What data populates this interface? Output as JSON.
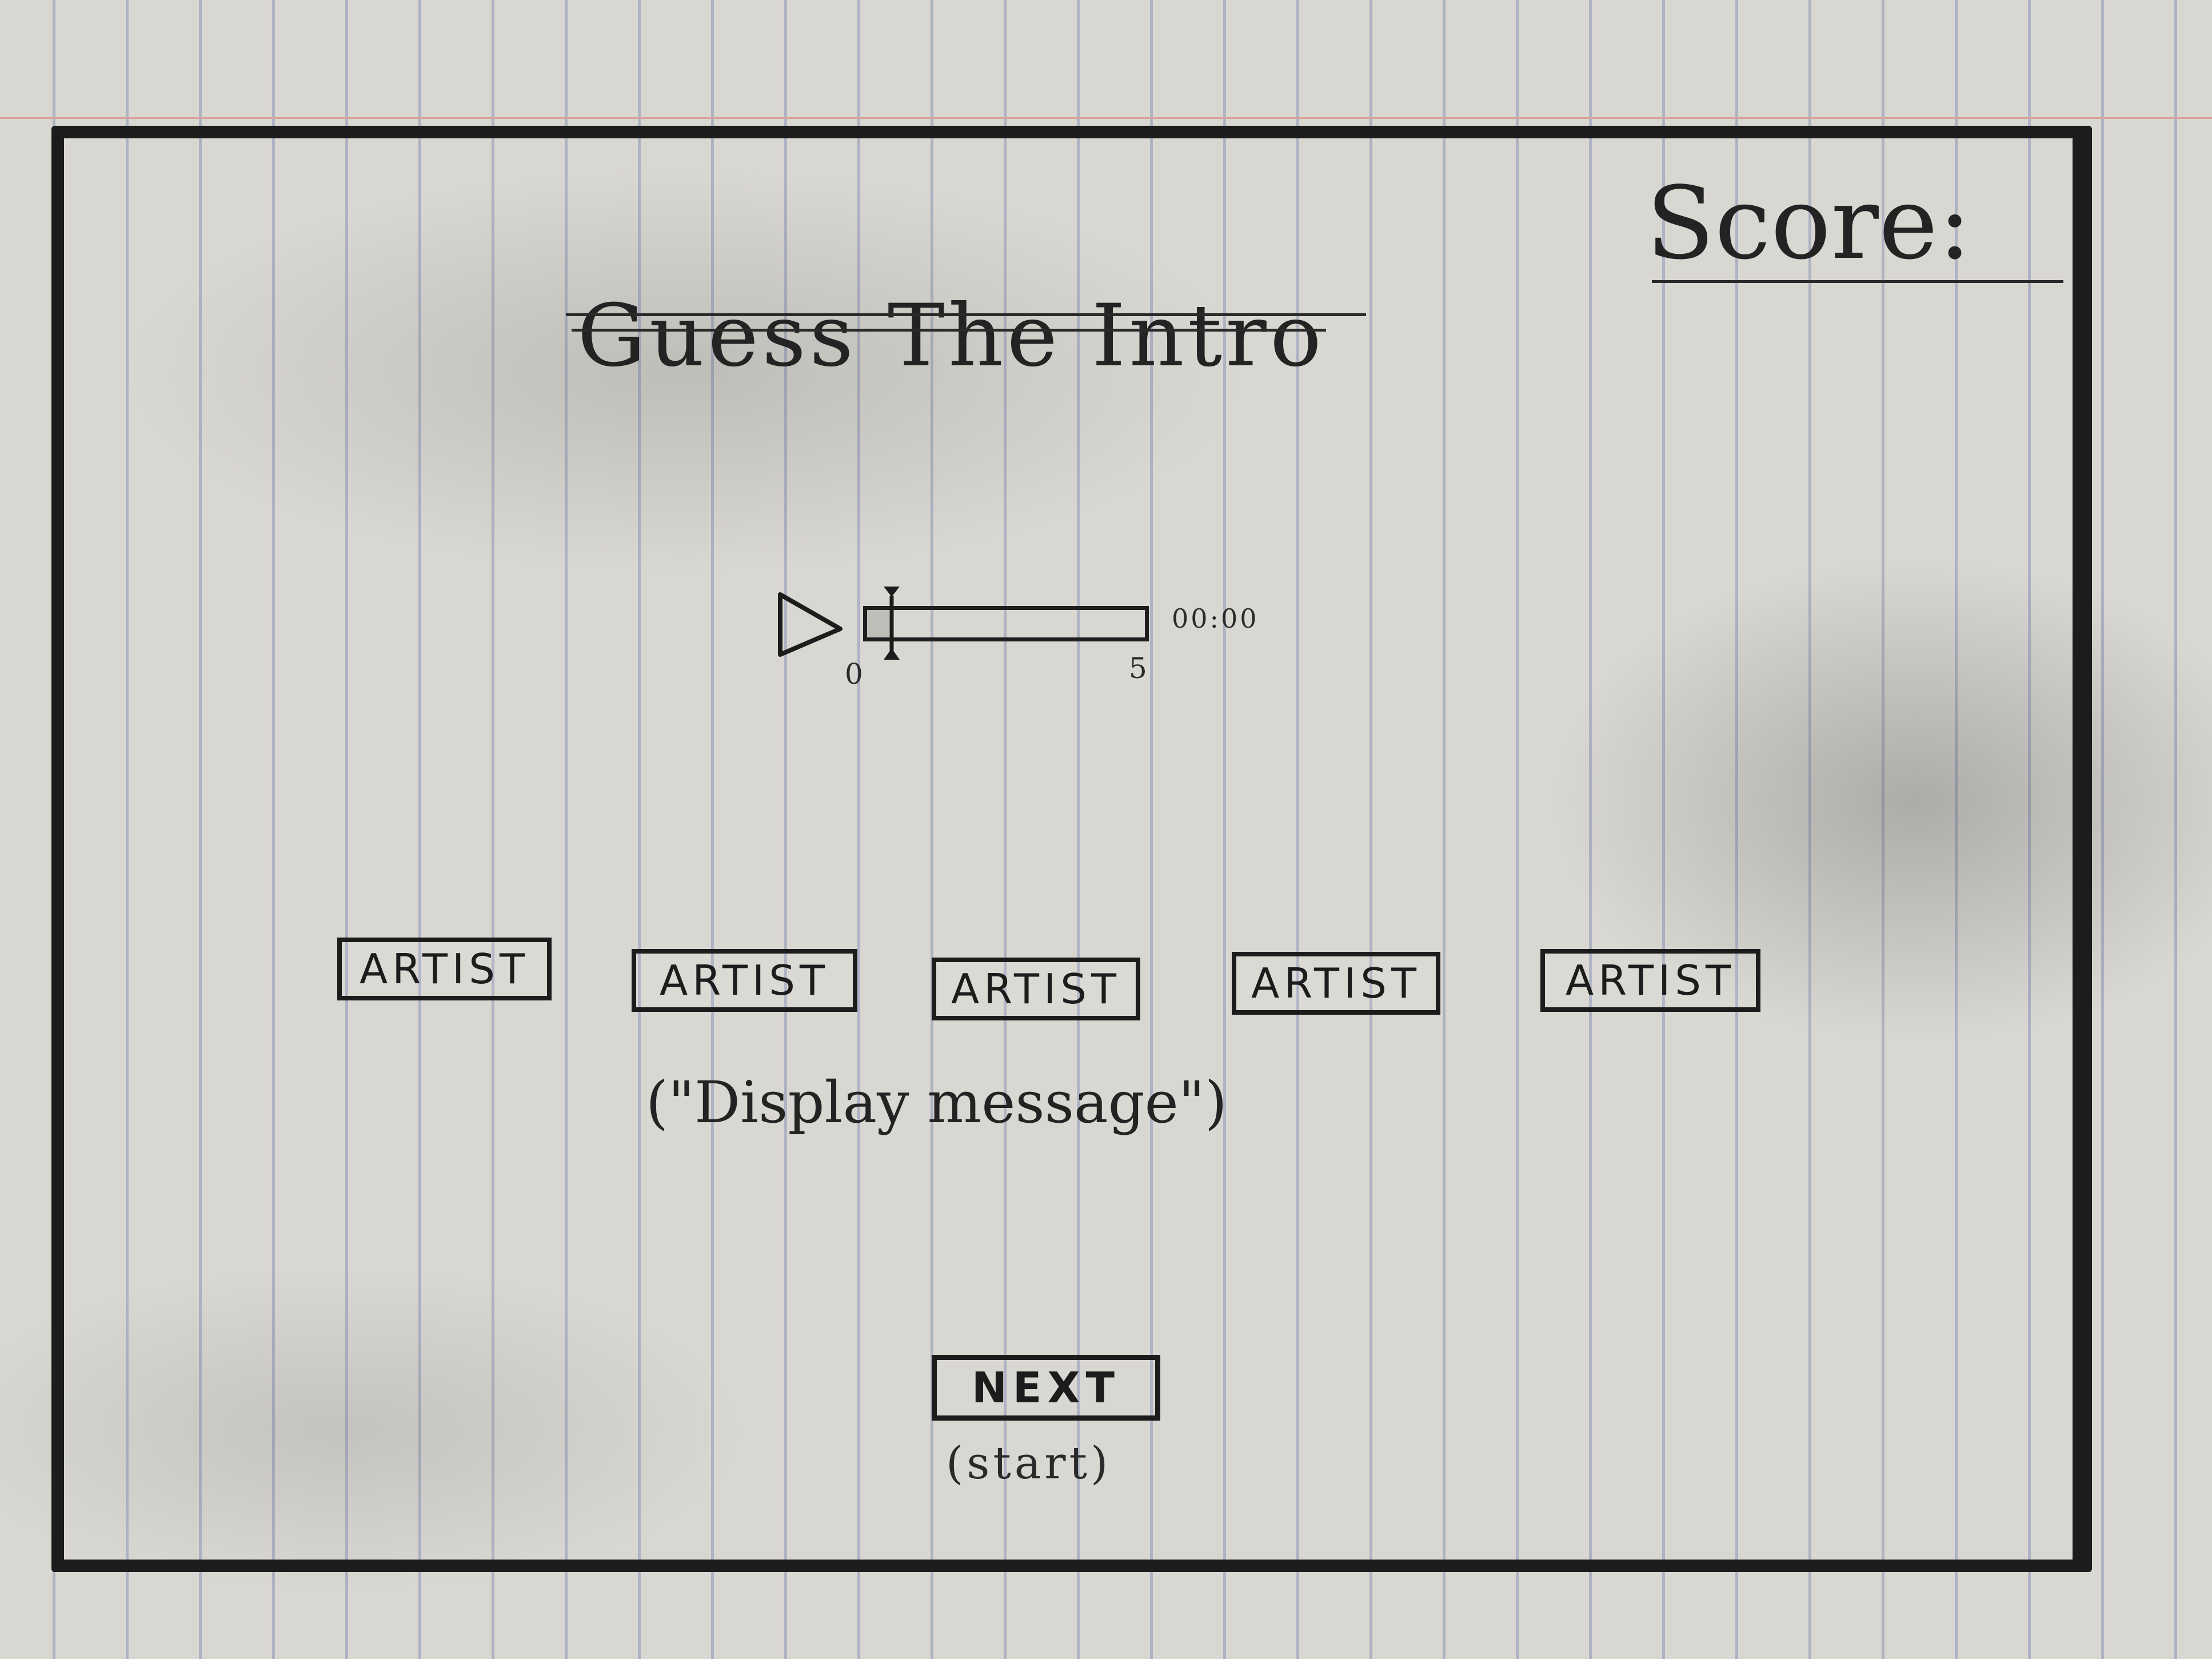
{
  "header": {
    "title": "Guess The Intro",
    "score_label": "Score:",
    "score_value": ""
  },
  "player": {
    "play_icon": "play-triangle",
    "time": "00:00",
    "range_start": "0",
    "range_end": "5",
    "progress_fraction": 0.08
  },
  "answers": [
    {
      "label": "ARTIST"
    },
    {
      "label": "ARTIST"
    },
    {
      "label": "ARTIST"
    },
    {
      "label": "ARTIST"
    },
    {
      "label": "ARTIST"
    }
  ],
  "message": "(\"Display message\")",
  "next_button": {
    "label": "NEXT",
    "sublabel": "(start)"
  },
  "colors": {
    "ink": "#1c1c1c",
    "paper": "#d9d7d1",
    "rule_lines": "#aeb3c4",
    "margin_line": "#d9a29a"
  }
}
